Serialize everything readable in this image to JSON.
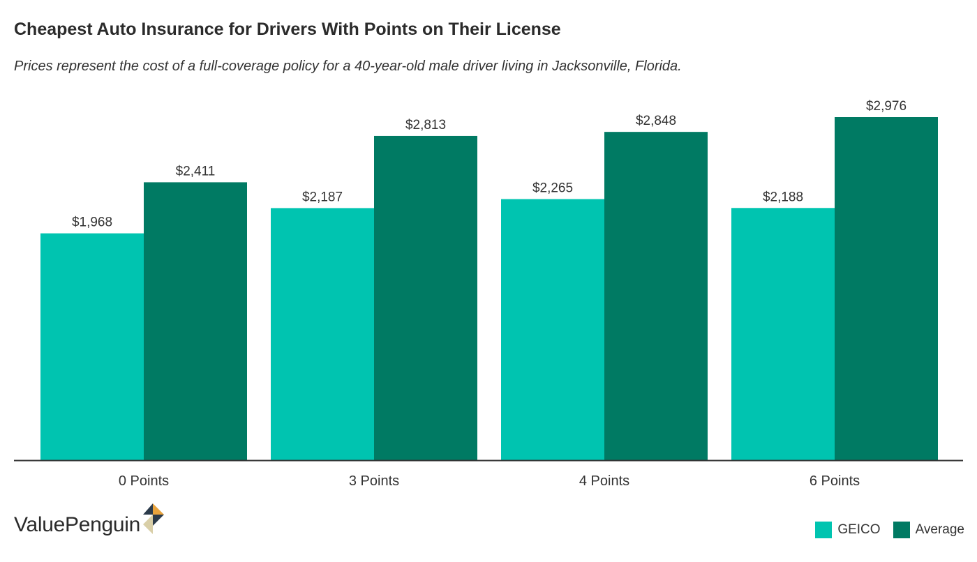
{
  "title": "Cheapest Auto Insurance for Drivers With Points on Their License",
  "subtitle": "Prices represent the cost of a full-coverage policy for a 40-year-old male driver living in Jacksonville, Florida.",
  "brand": {
    "name": "ValuePenguin"
  },
  "colors": {
    "geico": "#00c4b0",
    "average": "#007a63",
    "axis": "#333333"
  },
  "chart_data": {
    "type": "bar",
    "categories": [
      "0 Points",
      "3 Points",
      "4 Points",
      "6 Points"
    ],
    "series": [
      {
        "name": "GEICO",
        "values": [
          1968,
          2187,
          2265,
          2188
        ],
        "labels": [
          "$1,968",
          "$2,187",
          "$2,265",
          "$2,188"
        ]
      },
      {
        "name": "Average",
        "values": [
          2411,
          2813,
          2848,
          2976
        ],
        "labels": [
          "$2,411",
          "$2,813",
          "$2,848",
          "$2,976"
        ]
      }
    ],
    "ylim": [
      0,
      3000
    ],
    "grid": false,
    "legend_position": "bottom-right"
  }
}
